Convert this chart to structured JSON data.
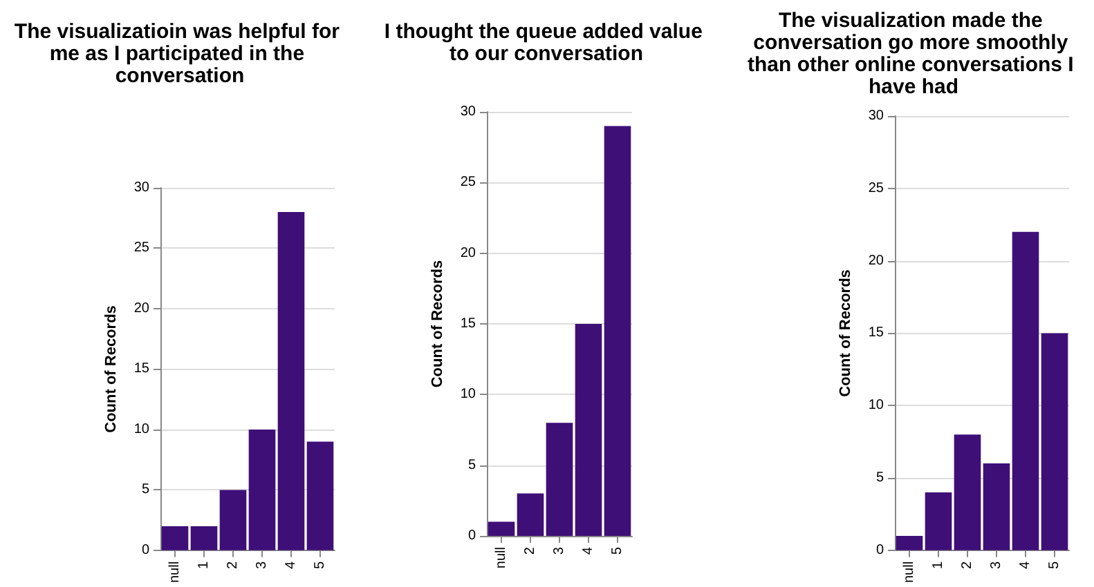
{
  "chart_data": [
    {
      "type": "bar",
      "title": "The visualizatioin was helpful for me as I participated in the conversation",
      "ylabel": "Count of Records",
      "categories": [
        "null",
        "1",
        "2",
        "3",
        "4",
        "5"
      ],
      "values": [
        2,
        2,
        5,
        10,
        28,
        9
      ],
      "color": "#3f0f78",
      "ylim": [
        0,
        30
      ],
      "yticks": [
        0,
        5,
        10,
        15,
        20,
        25,
        30
      ],
      "grid": "y"
    },
    {
      "type": "bar",
      "title": "I thought the queue added value to our conversation",
      "ylabel": "Count of Records",
      "categories": [
        "null",
        "2",
        "3",
        "4",
        "5"
      ],
      "values": [
        1,
        3,
        8,
        15,
        29
      ],
      "color": "#3f0f78",
      "ylim": [
        0,
        30
      ],
      "yticks": [
        0,
        5,
        10,
        15,
        20,
        25,
        30
      ],
      "grid": "y"
    },
    {
      "type": "bar",
      "title": "The visualization made the conversation go more smoothly than other online conversations I have had",
      "ylabel": "Count of Records",
      "categories": [
        "null",
        "1",
        "2",
        "3",
        "4",
        "5"
      ],
      "values": [
        1,
        4,
        8,
        6,
        22,
        15
      ],
      "color": "#3f0f78",
      "ylim": [
        0,
        30
      ],
      "yticks": [
        0,
        5,
        10,
        15,
        20,
        25,
        30
      ],
      "grid": "y"
    }
  ]
}
